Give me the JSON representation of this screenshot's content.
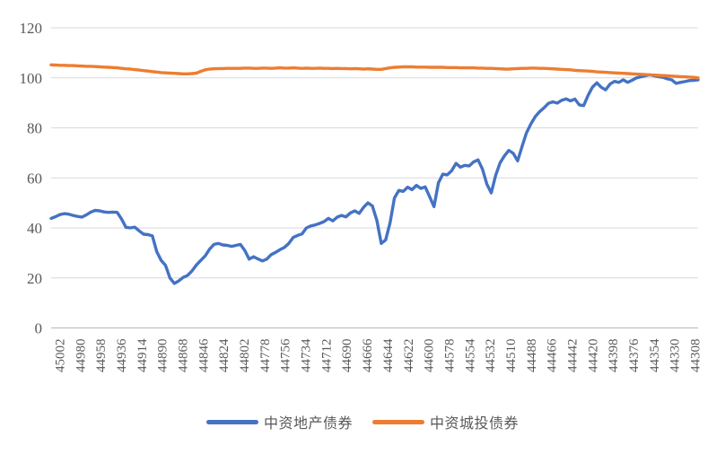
{
  "chart_data": {
    "type": "line",
    "title": "",
    "xlabel": "",
    "ylabel": "",
    "ylim": [
      0,
      120
    ],
    "y_ticks": [
      0,
      20,
      40,
      60,
      80,
      100,
      120
    ],
    "grid": "horizontal",
    "legend_position": "bottom",
    "x_tick_labels": [
      "45002",
      "44980",
      "44958",
      "44936",
      "44914",
      "44890",
      "44868",
      "44846",
      "44824",
      "44802",
      "44778",
      "44756",
      "44734",
      "44712",
      "44690",
      "44666",
      "44644",
      "44622",
      "44600",
      "44578",
      "44554",
      "44532",
      "44510",
      "44488",
      "44466",
      "44442",
      "44420",
      "44398",
      "44376",
      "44354",
      "44330",
      "44308"
    ],
    "series": [
      {
        "name": "中资地产债券",
        "color": "#4472C4",
        "values": [
          43.8,
          44.5,
          45.3,
          45.7,
          45.5,
          45.0,
          44.6,
          44.3,
          45.2,
          46.3,
          47.0,
          46.8,
          46.4,
          46.2,
          46.3,
          46.2,
          43.5,
          40.2,
          40.0,
          40.3,
          38.8,
          37.5,
          37.3,
          36.8,
          30.5,
          27.0,
          25.0,
          20.0,
          17.8,
          18.8,
          20.2,
          21.0,
          22.8,
          25.2,
          27.0,
          28.8,
          31.5,
          33.4,
          33.8,
          33.2,
          33.0,
          32.6,
          33.0,
          33.4,
          31.0,
          27.5,
          28.5,
          27.6,
          26.8,
          27.5,
          29.3,
          30.2,
          31.3,
          32.2,
          33.8,
          36.2,
          37.0,
          37.6,
          40.0,
          40.8,
          41.2,
          41.8,
          42.5,
          43.8,
          42.8,
          44.3,
          45.0,
          44.4,
          46.0,
          46.8,
          45.8,
          48.2,
          50.0,
          48.8,
          43.0,
          33.8,
          35.2,
          42.0,
          52.0,
          55.0,
          54.6,
          56.3,
          55.3,
          57.0,
          55.8,
          56.4,
          52.5,
          48.5,
          58.0,
          61.5,
          61.2,
          62.8,
          65.8,
          64.3,
          65.0,
          64.8,
          66.4,
          67.2,
          63.5,
          57.5,
          54.0,
          61.0,
          66.0,
          68.8,
          71.0,
          69.8,
          66.8,
          72.5,
          78.0,
          81.5,
          84.5,
          86.5,
          88.0,
          89.8,
          90.4,
          89.9,
          91.0,
          91.6,
          90.8,
          91.5,
          89.2,
          88.9,
          93.0,
          96.3,
          98.0,
          96.2,
          95.2,
          97.5,
          98.6,
          98.2,
          99.2,
          98.2,
          99.0,
          100.0,
          100.4,
          100.8,
          101.2,
          100.8,
          100.5,
          100.2,
          99.6,
          99.2,
          97.8,
          98.2,
          98.5,
          98.9,
          99.0,
          99.2
        ]
      },
      {
        "name": "中资城投债券",
        "color": "#ED7D31",
        "values": [
          105.2,
          105.1,
          105.0,
          105.0,
          104.9,
          104.9,
          104.8,
          104.7,
          104.6,
          104.6,
          104.5,
          104.4,
          104.3,
          104.2,
          104.1,
          104.0,
          103.8,
          103.6,
          103.5,
          103.3,
          103.1,
          102.9,
          102.7,
          102.5,
          102.3,
          102.1,
          102.0,
          101.9,
          101.8,
          101.7,
          101.6,
          101.6,
          101.7,
          101.9,
          102.6,
          103.2,
          103.5,
          103.6,
          103.7,
          103.7,
          103.8,
          103.8,
          103.8,
          103.8,
          103.9,
          103.9,
          103.8,
          103.8,
          103.9,
          103.9,
          103.8,
          103.9,
          104.0,
          103.9,
          103.9,
          104.0,
          103.9,
          103.8,
          103.9,
          103.8,
          103.8,
          103.9,
          103.8,
          103.8,
          103.7,
          103.8,
          103.7,
          103.7,
          103.6,
          103.7,
          103.6,
          103.5,
          103.6,
          103.5,
          103.4,
          103.4,
          103.7,
          104.0,
          104.2,
          104.3,
          104.4,
          104.4,
          104.4,
          104.3,
          104.3,
          104.3,
          104.2,
          104.2,
          104.2,
          104.2,
          104.1,
          104.1,
          104.1,
          104.0,
          104.0,
          104.0,
          104.0,
          103.9,
          103.9,
          103.8,
          103.8,
          103.7,
          103.6,
          103.5,
          103.5,
          103.6,
          103.7,
          103.8,
          103.8,
          103.9,
          103.9,
          103.8,
          103.8,
          103.7,
          103.6,
          103.5,
          103.4,
          103.3,
          103.2,
          103.0,
          102.9,
          102.8,
          102.7,
          102.6,
          102.4,
          102.3,
          102.2,
          102.1,
          102.0,
          101.9,
          101.8,
          101.7,
          101.6,
          101.5,
          101.4,
          101.3,
          101.2,
          101.1,
          101.0,
          100.9,
          100.8,
          100.7,
          100.6,
          100.5,
          100.4,
          100.3,
          100.2,
          100.0
        ]
      }
    ],
    "colors": {
      "grid": "#D9D9D9",
      "axis": "#BFBFBF",
      "tick_label": "#595959",
      "legend_text": "#595959",
      "background": "#FFFFFF"
    }
  }
}
